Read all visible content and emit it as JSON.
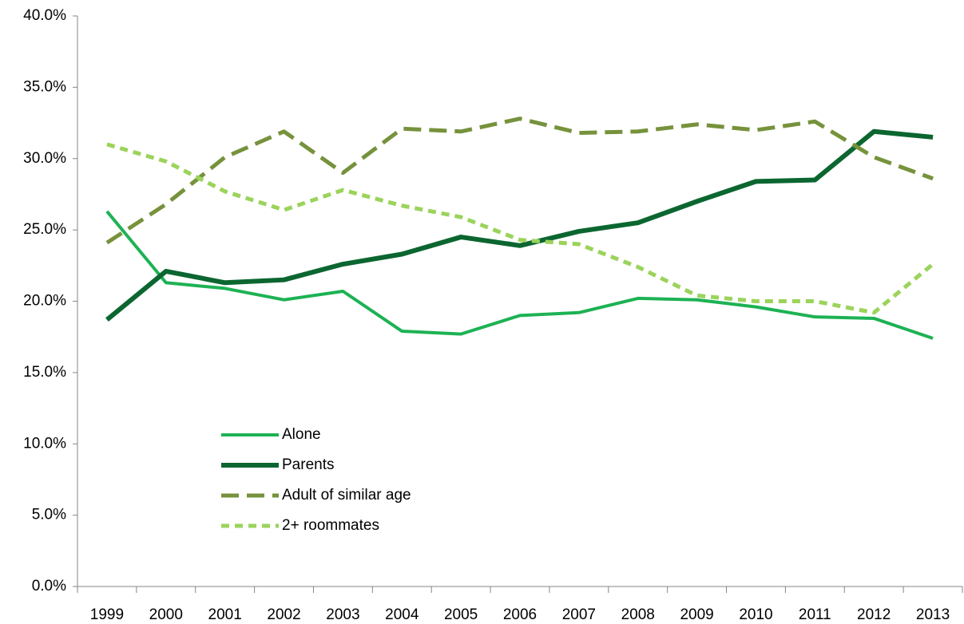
{
  "chart_data": {
    "type": "line",
    "categories": [
      "1999",
      "2000",
      "2001",
      "2002",
      "2003",
      "2004",
      "2005",
      "2006",
      "2007",
      "2008",
      "2009",
      "2010",
      "2011",
      "2012",
      "2013"
    ],
    "ylim": [
      0,
      40
    ],
    "yticks": [
      {
        "value": 0,
        "label": "0.0%"
      },
      {
        "value": 5,
        "label": "5.0%"
      },
      {
        "value": 10,
        "label": "10.0%"
      },
      {
        "value": 15,
        "label": "15.0%"
      },
      {
        "value": 20,
        "label": "20.0%"
      },
      {
        "value": 25,
        "label": "25.0%"
      },
      {
        "value": 30,
        "label": "30.0%"
      },
      {
        "value": 35,
        "label": "35.0%"
      },
      {
        "value": 40,
        "label": "40.0%"
      }
    ],
    "grid": false,
    "legend": "lower-left",
    "series": [
      {
        "name": "Alone",
        "color": "#1db254",
        "width": 4,
        "dash": "solid",
        "values": [
          26.3,
          21.3,
          20.9,
          20.1,
          20.7,
          17.9,
          17.7,
          19.0,
          19.2,
          20.2,
          20.1,
          19.6,
          18.9,
          18.8,
          17.4
        ]
      },
      {
        "name": "Parents",
        "color": "#0b6630",
        "width": 6,
        "dash": "solid",
        "values": [
          18.7,
          22.1,
          21.3,
          21.5,
          22.6,
          23.3,
          24.5,
          23.9,
          24.9,
          25.5,
          27.0,
          28.4,
          28.5,
          31.9,
          31.5
        ]
      },
      {
        "name": "Adult of similar age",
        "color": "#76923c",
        "width": 5,
        "dash": "long",
        "values": [
          24.1,
          26.8,
          30.1,
          31.9,
          29.0,
          32.1,
          31.9,
          32.8,
          31.8,
          31.9,
          32.4,
          32.0,
          32.6,
          30.1,
          28.6
        ]
      },
      {
        "name": "2+ roommates",
        "color": "#9bd35b",
        "width": 5,
        "dash": "short",
        "values": [
          31.0,
          29.8,
          27.7,
          26.4,
          27.8,
          26.7,
          25.9,
          24.3,
          24.0,
          22.4,
          20.4,
          20.0,
          20.0,
          19.2,
          22.6
        ]
      }
    ]
  }
}
